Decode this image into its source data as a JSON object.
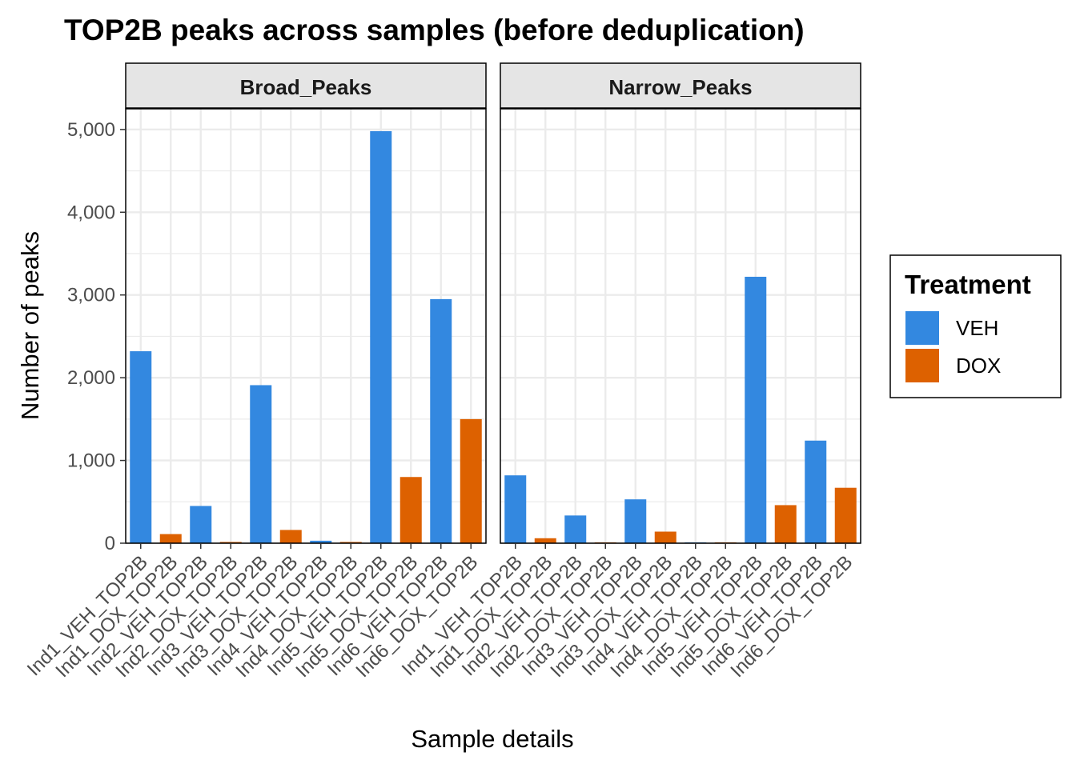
{
  "chart_data": {
    "type": "bar",
    "title": "TOP2B peaks across samples (before deduplication)",
    "xlabel": "Sample details",
    "ylabel": "Number of peaks",
    "ylim": [
      0,
      5250
    ],
    "yticks": [
      0,
      1000,
      2000,
      3000,
      4000,
      5000
    ],
    "ytick_labels": [
      "0",
      "1,000",
      "2,000",
      "3,000",
      "4,000",
      "5,000"
    ],
    "grid": true,
    "categories": [
      "Ind1_VEH_TOP2B",
      "Ind1_DOX_TOP2B",
      "Ind2_VEH_TOP2B",
      "Ind2_DOX_TOP2B",
      "Ind3_VEH_TOP2B",
      "Ind3_DOX_TOP2B",
      "Ind4_VEH_TOP2B",
      "Ind4_DOX_TOP2B",
      "Ind5_VEH_TOP2B",
      "Ind5_DOX_TOP2B",
      "Ind6_VEH_TOP2B",
      "Ind6_DOX_TOP2B"
    ],
    "category_treatment": [
      "VEH",
      "DOX",
      "VEH",
      "DOX",
      "VEH",
      "DOX",
      "VEH",
      "DOX",
      "VEH",
      "DOX",
      "VEH",
      "DOX"
    ],
    "panels": [
      {
        "name": "Broad_Peaks",
        "values": [
          2320,
          110,
          450,
          15,
          1910,
          160,
          30,
          15,
          4980,
          800,
          2950,
          1500
        ]
      },
      {
        "name": "Narrow_Peaks",
        "values": [
          820,
          60,
          335,
          10,
          530,
          140,
          10,
          10,
          3220,
          460,
          1240,
          670
        ]
      }
    ],
    "legend": {
      "title": "Treatment",
      "placement": "right",
      "entries": [
        {
          "label": "VEH",
          "color": "#3388E0"
        },
        {
          "label": "DOX",
          "color": "#DD6100"
        }
      ]
    },
    "colors": {
      "panel_border": "#000000",
      "strip_fill": "#E5E5E5",
      "grid": "#EBEBEB"
    }
  }
}
